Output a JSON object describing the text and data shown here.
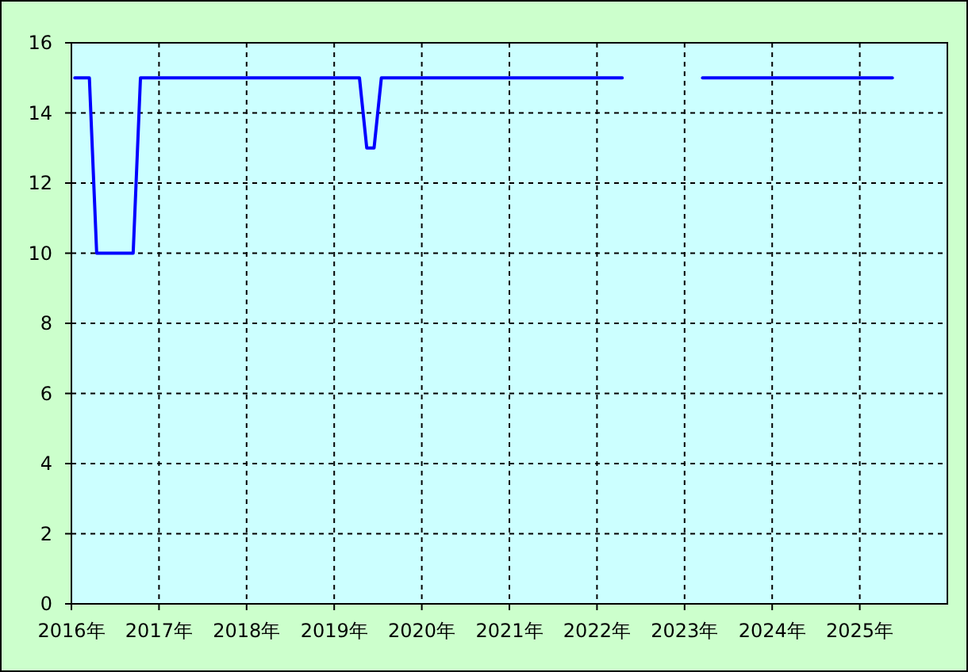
{
  "chart_data": {
    "type": "line",
    "series": [
      {
        "color": "#0000ff",
        "x": [
          "2016-01-15",
          "2016-03-15",
          "2016-04-15",
          "2016-09-15",
          "2016-10-15",
          "2019-04-15",
          "2019-05-15",
          "2019-06-15",
          "2019-07-15",
          "2022-04-15"
        ],
        "values": [
          15,
          15,
          10,
          10,
          15,
          15,
          13,
          13,
          15,
          15
        ]
      },
      {
        "color": "#0000ff",
        "x": [
          "2023-03-15",
          "2025-05-15"
        ],
        "values": [
          15,
          15
        ]
      }
    ],
    "xlim": [
      "2016-01-01",
      "2026-01-01"
    ],
    "xticks": [
      {
        "value": "2016-01-01",
        "label": "2016年"
      },
      {
        "value": "2017-01-01",
        "label": "2017年"
      },
      {
        "value": "2018-01-01",
        "label": "2018年"
      },
      {
        "value": "2019-01-01",
        "label": "2019年"
      },
      {
        "value": "2020-01-01",
        "label": "2020年"
      },
      {
        "value": "2021-01-01",
        "label": "2021年"
      },
      {
        "value": "2022-01-01",
        "label": "2022年"
      },
      {
        "value": "2023-01-01",
        "label": "2023年"
      },
      {
        "value": "2024-01-01",
        "label": "2024年"
      },
      {
        "value": "2025-01-01",
        "label": "2025年"
      }
    ],
    "ylim": [
      0,
      16
    ],
    "yticks": [
      0,
      2,
      4,
      6,
      8,
      10,
      12,
      14,
      16
    ],
    "grid": true,
    "line_style": "solid",
    "marker": "none"
  }
}
